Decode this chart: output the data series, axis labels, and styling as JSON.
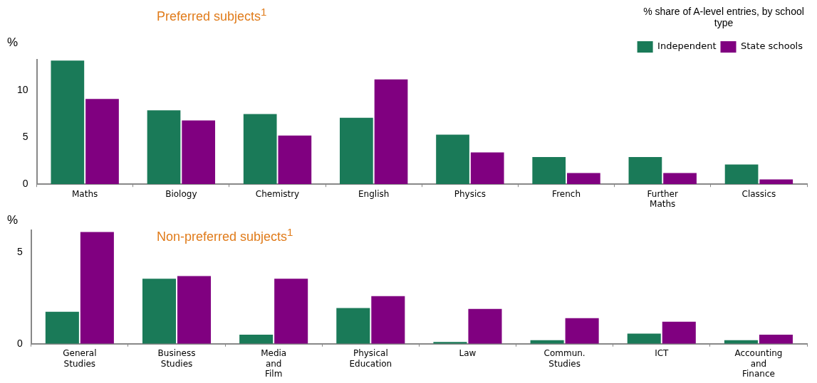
{
  "chart_data": [
    {
      "type": "bar",
      "title": "Preferred subjects$^{1}$",
      "ylabel": "%",
      "annotations": [
        "% share of A-level entries, by school type"
      ],
      "categories": [
        "Maths",
        "Biology",
        "Chemistry",
        "English",
        "Physics",
        "French",
        "Further\nMaths",
        "Classics"
      ],
      "series": [
        {
          "name": "Independent",
          "color": "#1a7a58",
          "values": [
            13.2,
            7.9,
            7.5,
            7.1,
            5.3,
            2.9,
            2.9,
            2.1
          ]
        },
        {
          "name": "State schools",
          "color": "#800080",
          "values": [
            9.1,
            6.8,
            5.2,
            11.2,
            3.4,
            1.2,
            1.2,
            0.5
          ]
        }
      ],
      "ylim": [
        0,
        13.3
      ],
      "yticks": [
        0,
        5,
        10
      ],
      "grid": false,
      "legend": "top right"
    },
    {
      "type": "bar",
      "title": "Non-preferred subjects$^{1}$",
      "ylabel": "%",
      "categories": [
        "General\nStudies",
        "Business\nStudies",
        "Media\nand\nFilm",
        "Physical\nEducation",
        "Law",
        "Commun.\nStudies",
        "ICT",
        "Accounting\nand\nFinance"
      ],
      "series": [
        {
          "color": "#1a7a58",
          "values": [
            1.75,
            3.55,
            0.5,
            1.95,
            0.1,
            0.2,
            0.55,
            0.2
          ]
        },
        {
          "color": "#800080",
          "values": [
            6.1,
            3.7,
            3.55,
            2.6,
            1.9,
            1.4,
            1.2,
            0.5
          ]
        }
      ],
      "ylim": [
        0,
        6.2
      ],
      "yticks": [
        0,
        5
      ],
      "grid": false,
      "legend": false
    }
  ]
}
